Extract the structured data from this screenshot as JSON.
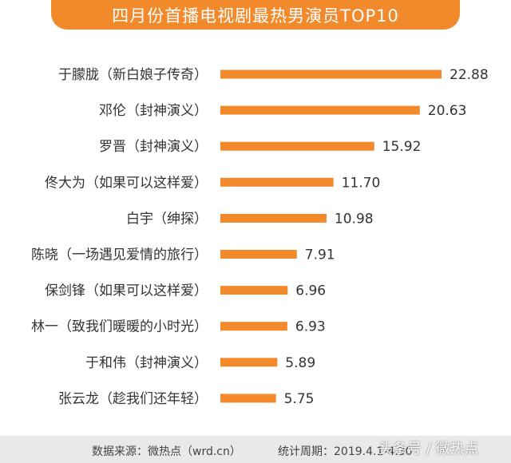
{
  "chart_data": {
    "type": "bar",
    "orientation": "horizontal",
    "title": "四月份首播电视剧最热男演员TOP10",
    "categories": [
      "于朦胧（新白娘子传奇）",
      "邓伦（封神演义）",
      "罗晋（封神演义）",
      "佟大为（如果可以这样爱）",
      "白宇（绅探）",
      "陈晓（一场遇见爱情的旅行）",
      "保剑锋（如果可以这样爱）",
      "林一（致我们暖暖的小时光）",
      "于和伟（封神演义）",
      "张云龙（趁我们还年轻）"
    ],
    "values": [
      22.88,
      20.63,
      15.92,
      11.7,
      10.98,
      7.91,
      6.96,
      6.93,
      5.89,
      5.75
    ],
    "value_labels": [
      "22.88",
      "20.63",
      "15.92",
      "11.70",
      "10.98",
      "7.91",
      "6.96",
      "6.93",
      "5.89",
      "5.75"
    ],
    "xlim": [
      0,
      22.88
    ],
    "grid": false,
    "legend": "none",
    "bar_color": "#f28a2c"
  },
  "footer": {
    "source": "数据来源：微热点（wrd.cn）",
    "period": "统计周期：2019.4.1-4.30"
  },
  "watermark": "头条号 / 微热点",
  "colors": {
    "accent": "#f28a2c",
    "text": "#333333",
    "footer_bg": "#e9e9e9"
  }
}
